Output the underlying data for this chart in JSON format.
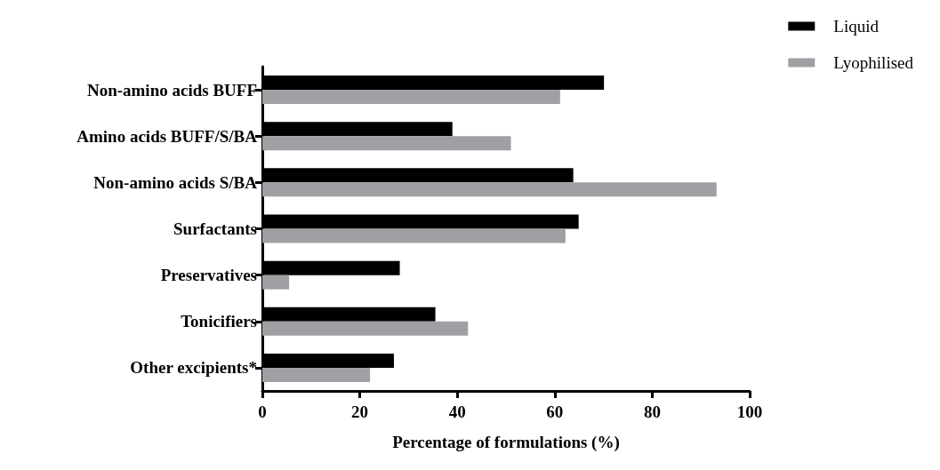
{
  "chart_data": {
    "type": "bar",
    "orientation": "horizontal",
    "xlabel": "Percentage of formulations (%)",
    "categories": [
      "Non-amino acids BUFF",
      "Amino acids BUFF/S/BA",
      "Non-amino acids S/BA",
      "Surfactants",
      "Preservatives",
      "Tonicifiers",
      "Other excipients*"
    ],
    "series": [
      {
        "name": "Liquid",
        "color": "#000000",
        "values": [
          70.1,
          39.0,
          63.8,
          64.9,
          28.2,
          35.5,
          27.0
        ]
      },
      {
        "name": "Lyophilised",
        "color": "#a0a0a4",
        "values": [
          61.1,
          51.0,
          93.2,
          62.2,
          5.5,
          42.2,
          22.1
        ]
      }
    ],
    "xlim": [
      0,
      100
    ],
    "xticks": [
      0,
      20,
      40,
      60,
      80,
      100
    ],
    "grid": false,
    "legend": "top right"
  }
}
